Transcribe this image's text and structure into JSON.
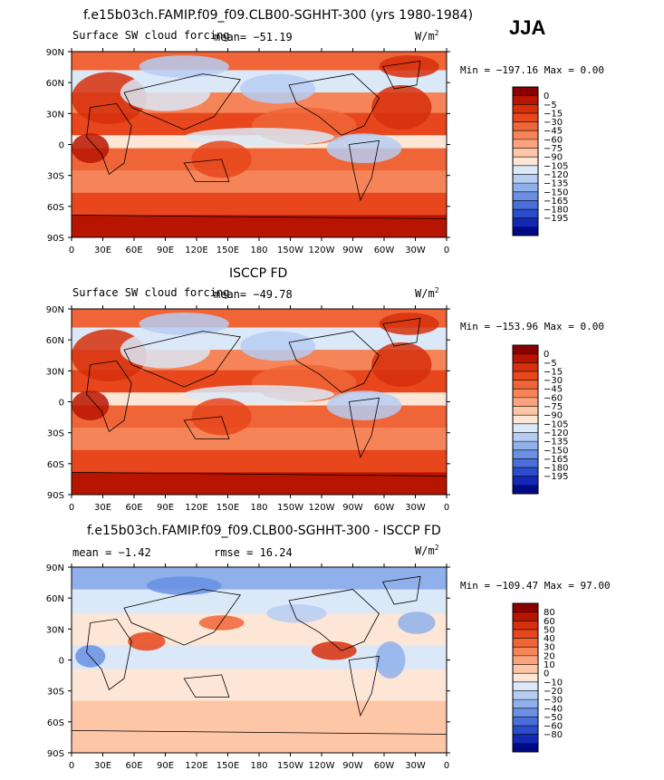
{
  "figure": {
    "season": "JJA",
    "units_base": "W/m",
    "units_exp": "2"
  },
  "chart_data": [
    {
      "type": "heatmap",
      "title": "f.e15b03ch.FAMIP.f09_f09.CLB00-SGHHT-300 (yrs 1980-1984)",
      "subtitle": "Surface SW cloud forcing",
      "mean_text": "mean= −51.19",
      "stats_text": "Min = −197.16 Max =    0.00",
      "x_ticks": [
        "0",
        "30E",
        "60E",
        "90E",
        "120E",
        "150E",
        "180",
        "150W",
        "120W",
        "90W",
        "60W",
        "30W",
        "0"
      ],
      "y_ticks": [
        "90N",
        "60N",
        "30N",
        "0",
        "30S",
        "60S",
        "90S"
      ],
      "colorbar_labels": [
        "0",
        "−5",
        "−15",
        "−30",
        "−45",
        "−60",
        "−75",
        "−90",
        "−105",
        "−120",
        "−135",
        "−150",
        "−165",
        "−180",
        "−195"
      ],
      "colorbar_colors": [
        "#8a0000",
        "#b81500",
        "#d62f0c",
        "#e8461c",
        "#f06537",
        "#f68459",
        "#fba37d",
        "#fdc6a6",
        "#fde6d6",
        "#dbe8f7",
        "#b6cdf2",
        "#8fb0ea",
        "#6990e3",
        "#4a6fd8",
        "#2b4ccb",
        "#1428b4",
        "#000a84"
      ]
    },
    {
      "type": "heatmap",
      "title": "ISCCP FD",
      "subtitle": "Surface SW cloud forcing",
      "mean_text": "mean= −49.78",
      "stats_text": "Min = −153.96 Max =    0.00",
      "x_ticks": [
        "0",
        "30E",
        "60E",
        "90E",
        "120E",
        "150E",
        "180",
        "150W",
        "120W",
        "90W",
        "60W",
        "30W",
        "0"
      ],
      "y_ticks": [
        "90N",
        "60N",
        "30N",
        "0",
        "30S",
        "60S",
        "90S"
      ],
      "colorbar_labels": [
        "0",
        "−5",
        "−15",
        "−30",
        "−45",
        "−60",
        "−75",
        "−90",
        "−105",
        "−120",
        "−135",
        "−150",
        "−165",
        "−180",
        "−195"
      ],
      "colorbar_colors": [
        "#8a0000",
        "#b81500",
        "#d62f0c",
        "#e8461c",
        "#f06537",
        "#f68459",
        "#fba37d",
        "#fdc6a6",
        "#fde6d6",
        "#dbe8f7",
        "#b6cdf2",
        "#8fb0ea",
        "#6990e3",
        "#4a6fd8",
        "#2b4ccb",
        "#1428b4",
        "#000a84"
      ]
    },
    {
      "type": "heatmap",
      "title": "f.e15b03ch.FAMIP.f09_f09.CLB00-SGHHT-300 - ISCCP FD",
      "subtitle": "",
      "mean_text": "mean =   −1.42",
      "rmse_text": "rmse =  16.24",
      "stats_text": "Min = −109.47 Max =   97.00",
      "x_ticks": [
        "0",
        "30E",
        "60E",
        "90E",
        "120E",
        "150E",
        "180",
        "150W",
        "120W",
        "90W",
        "60W",
        "30W",
        "0"
      ],
      "y_ticks": [
        "90N",
        "60N",
        "30N",
        "0",
        "30S",
        "60S",
        "90S"
      ],
      "colorbar_labels": [
        "80",
        "60",
        "50",
        "40",
        "30",
        "20",
        "10",
        "0",
        "−10",
        "−20",
        "−30",
        "−40",
        "−50",
        "−60",
        "−80"
      ],
      "colorbar_colors": [
        "#8a0000",
        "#b81500",
        "#d62f0c",
        "#e8461c",
        "#f06537",
        "#f68459",
        "#fba37d",
        "#fdc6a6",
        "#fde6d6",
        "#dbe8f7",
        "#b6cdf2",
        "#8fb0ea",
        "#6990e3",
        "#4a6fd8",
        "#2b4ccb",
        "#1428b4",
        "#000a84"
      ]
    }
  ]
}
